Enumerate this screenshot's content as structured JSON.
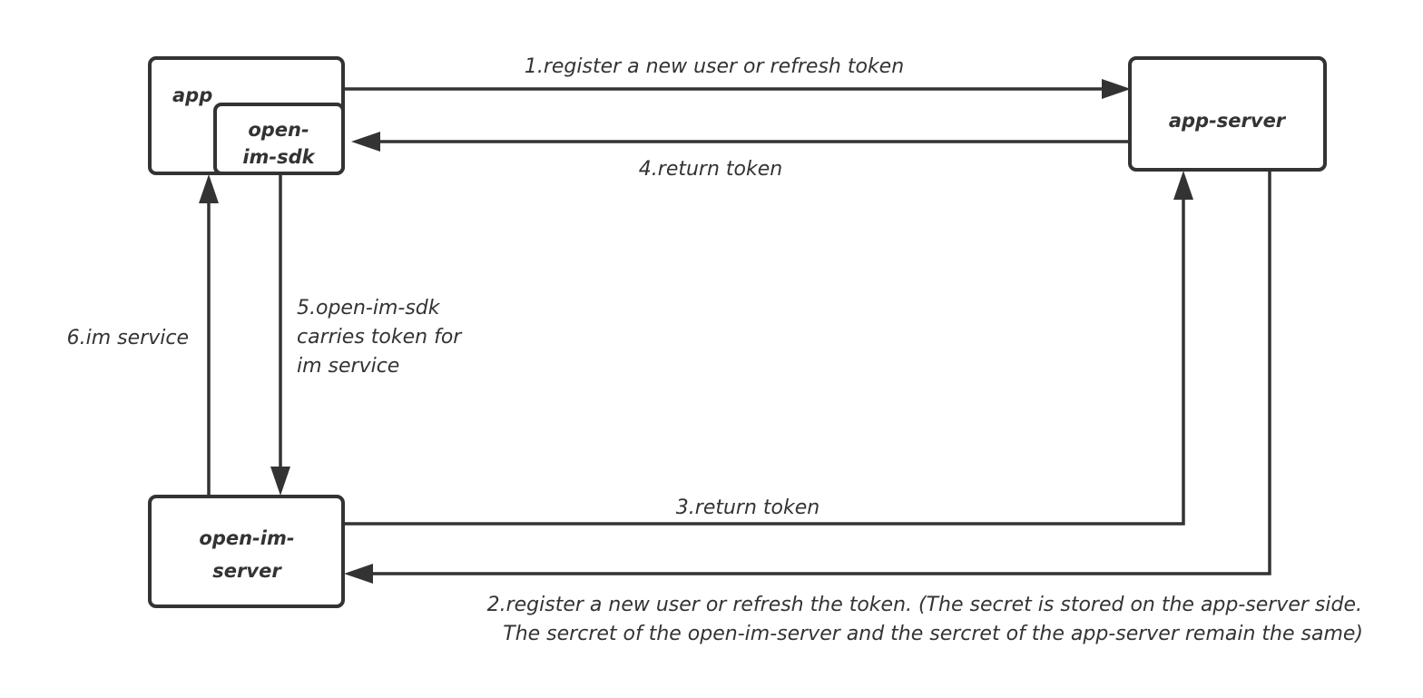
{
  "nodes": {
    "app": "app",
    "sdk": [
      "open-",
      "im-sdk"
    ],
    "app_server": "app-server",
    "im_server": [
      "open-im-",
      "server"
    ]
  },
  "edges": {
    "e1": "1.register a new user or refresh token",
    "e2": [
      "2.register a new user or refresh the token. (The secret is stored on the app-server side.",
      "The sercret of the open-im-server and the sercret of the app-server remain the same)"
    ],
    "e3": "3.return token",
    "e4": "4.return token",
    "e5": [
      "5.open-im-sdk",
      "carries token for",
      "im service"
    ],
    "e6": "6.im service"
  },
  "colors": {
    "stroke": "#333333",
    "background": "#ffffff"
  }
}
